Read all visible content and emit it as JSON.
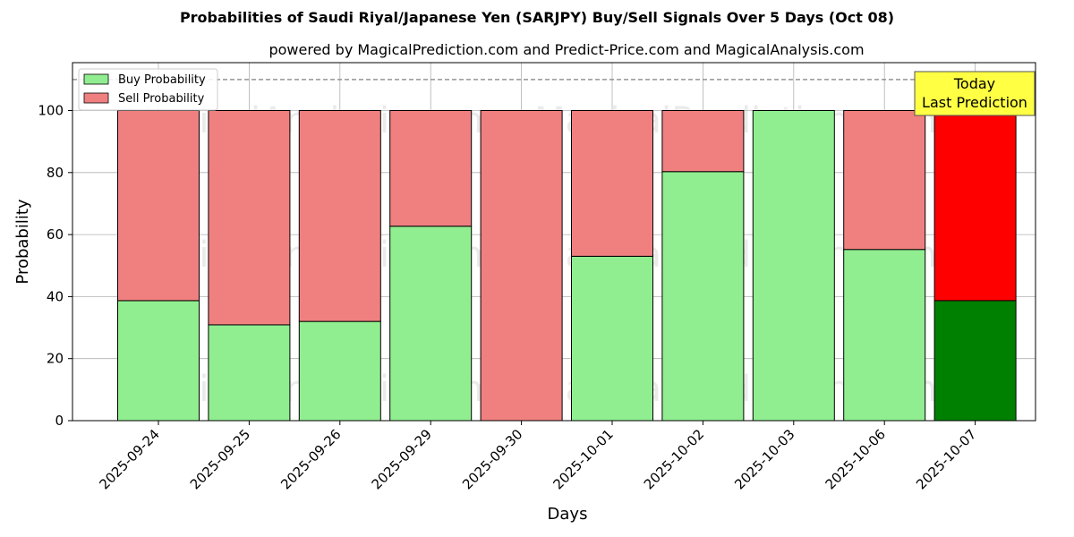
{
  "chart_data": {
    "type": "bar",
    "title": "Probabilities of Saudi Riyal/Japanese Yen (SARJPY) Buy/Sell Signals Over 5 Days (Oct 08)",
    "subtitle": "powered by MagicalPrediction.com and Predict-Price.com and MagicalAnalysis.com",
    "xlabel": "Days",
    "ylabel": "Probability",
    "categories": [
      "2025-09-24",
      "2025-09-25",
      "2025-09-26",
      "2025-09-29",
      "2025-09-30",
      "2025-10-01",
      "2025-10-02",
      "2025-10-03",
      "2025-10-06",
      "2025-10-07"
    ],
    "series": [
      {
        "name": "Buy Probability",
        "values": [
          38.7,
          30.9,
          32.0,
          62.7,
          0.0,
          53.0,
          80.3,
          100.0,
          55.2,
          38.7
        ]
      },
      {
        "name": "Sell Probability",
        "values": [
          61.3,
          69.1,
          68.0,
          37.3,
          100.0,
          47.0,
          19.7,
          0.0,
          44.8,
          61.3
        ]
      }
    ],
    "stacked": true,
    "ylim": [
      0,
      115
    ],
    "yticks": [
      0,
      20,
      40,
      60,
      80,
      100
    ],
    "reference_line": 110,
    "grid": true,
    "legend_position": "top-left",
    "colors": {
      "buy": "#90ee90",
      "sell": "#f08080",
      "buy_highlight": "#008000",
      "sell_highlight": "#ff0000",
      "annotation_bg": "#ffff44"
    },
    "highlight_index": 9,
    "annotation": {
      "line1": "Today",
      "line2": "Last Prediction"
    },
    "watermarks": [
      "MagicalAnalysis.com",
      "MagicalPrediction.com",
      "MagicalAnalysis.com",
      "MagicalPrediction.com",
      "MagicalAnalysis.com",
      "MagicalPrediction.com"
    ]
  }
}
